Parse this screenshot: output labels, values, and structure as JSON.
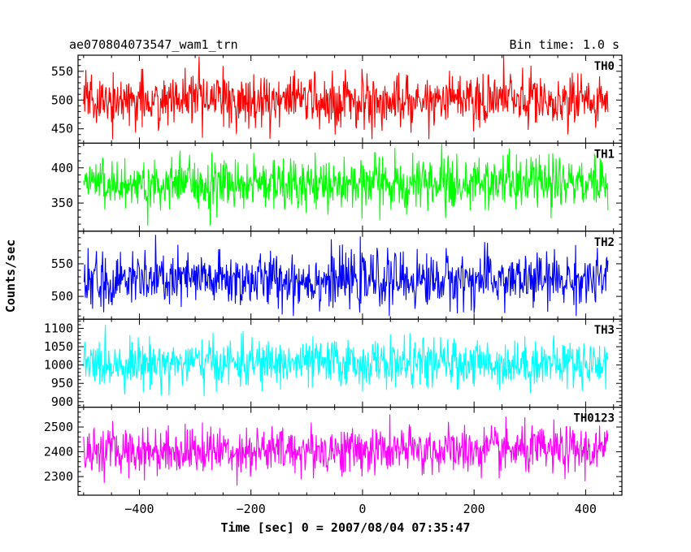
{
  "chart_data": {
    "type": "line",
    "title": "ae070804073547_wam1_trn",
    "subtitle": "Bin time: 1.0 s",
    "xlabel": "Time [sec] 0 = 2007/08/04 07:35:47",
    "ylabel": "Counts/sec",
    "xlim": [
      -510,
      465
    ],
    "x_data_range": [
      -500,
      440
    ],
    "bin_time_s": 1.0,
    "xticks": [
      -400,
      -200,
      0,
      200,
      400
    ],
    "xtick_labels": [
      "−400",
      "−200",
      "0",
      "200",
      "400"
    ],
    "grid": false,
    "panels": [
      {
        "name": "TH0",
        "color": "#ff0000",
        "ylim": [
          425,
          578
        ],
        "yticks": [
          450,
          500,
          550
        ],
        "mean": 500,
        "sigma": 23,
        "min": 432,
        "max": 578
      },
      {
        "name": "TH1",
        "color": "#00ff00",
        "ylim": [
          310,
          435
        ],
        "yticks": [
          350,
          400
        ],
        "mean": 378,
        "sigma": 19,
        "min": 318,
        "max": 435
      },
      {
        "name": "TH2",
        "color": "#0000ff",
        "ylim": [
          465,
          600
        ],
        "yticks": [
          500,
          550
        ],
        "mean": 525,
        "sigma": 21,
        "min": 470,
        "max": 600
      },
      {
        "name": "TH3",
        "color": "#00ffff",
        "ylim": [
          885,
          1125
        ],
        "yticks": [
          900,
          950,
          1000,
          1050,
          1100
        ],
        "yminor_step": 10,
        "mean": 1005,
        "sigma": 32,
        "min": 910,
        "max": 1110
      },
      {
        "name": "TH0123",
        "color": "#ff00ff",
        "ylim": [
          2225,
          2580
        ],
        "yticks": [
          2300,
          2400,
          2500
        ],
        "yminor_step": 20,
        "mean": 2405,
        "sigma": 48,
        "min": 2250,
        "max": 2565
      }
    ]
  }
}
